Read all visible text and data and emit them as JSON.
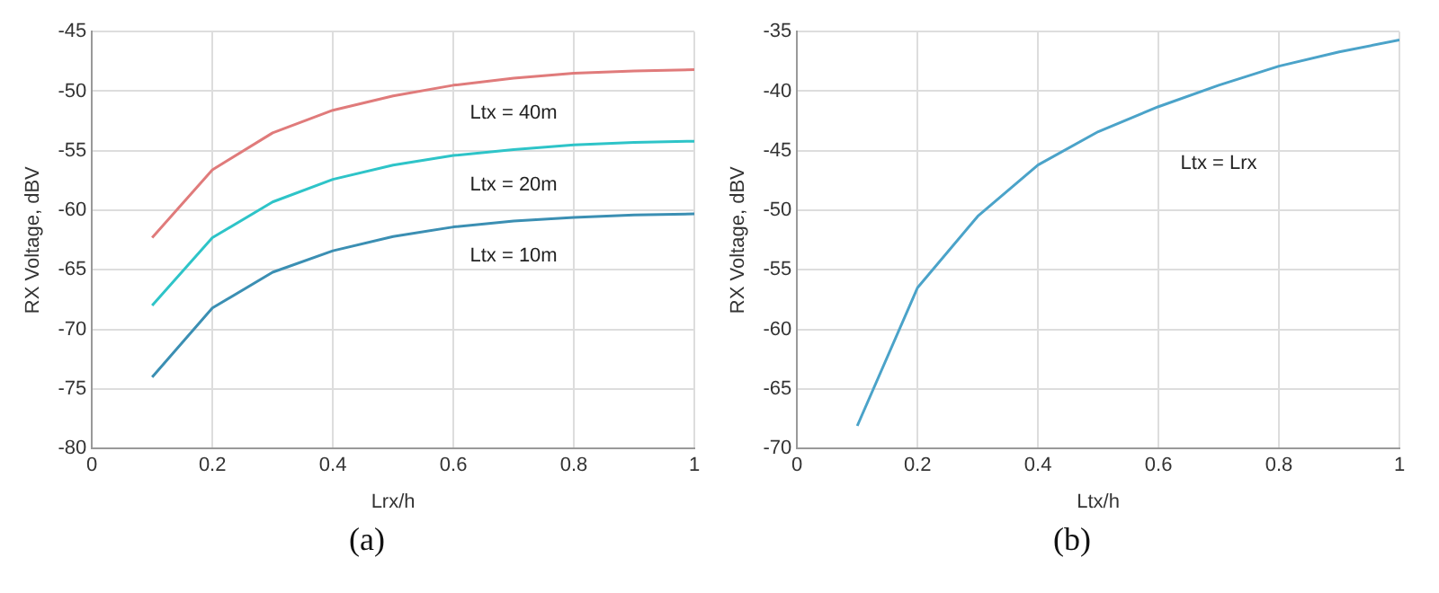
{
  "chart_data": [
    {
      "type": "line",
      "annotations": [
        "(a)"
      ],
      "xlabel": "Lrx/h",
      "ylabel": "RX Voltage, dBV",
      "x": [
        0.1,
        0.2,
        0.3,
        0.4,
        0.5,
        0.6,
        0.7,
        0.8,
        0.9,
        1.0
      ],
      "series": [
        {
          "name": "Ltx = 40m",
          "color": "#e07b7b",
          "values": [
            -62.3,
            -56.6,
            -53.5,
            -51.6,
            -50.4,
            -49.5,
            -48.9,
            -48.5,
            -48.3,
            -48.2
          ]
        },
        {
          "name": "Ltx = 20m",
          "color": "#2ec4c8",
          "values": [
            -68.0,
            -62.3,
            -59.3,
            -57.4,
            -56.2,
            -55.4,
            -54.9,
            -54.5,
            -54.3,
            -54.2
          ]
        },
        {
          "name": "Ltx = 10m",
          "color": "#3b8fb3",
          "values": [
            -74.0,
            -68.2,
            -65.2,
            -63.4,
            -62.2,
            -61.4,
            -60.9,
            -60.6,
            -60.4,
            -60.3
          ]
        }
      ],
      "xlim": [
        0,
        1
      ],
      "xticks": [
        0,
        0.2,
        0.4,
        0.6,
        0.8,
        1
      ],
      "ylim": [
        -80,
        -45
      ],
      "yticks": [
        -80,
        -75,
        -70,
        -65,
        -60,
        -55,
        -50,
        -45
      ],
      "grid": true,
      "legend": false,
      "marker": "none",
      "line_style": "solid"
    },
    {
      "type": "line",
      "annotations": [
        "(b)"
      ],
      "xlabel": "Ltx/h",
      "ylabel": "RX Voltage, dBV",
      "x": [
        0.1,
        0.2,
        0.3,
        0.4,
        0.5,
        0.6,
        0.7,
        0.8,
        0.9,
        1.0
      ],
      "series": [
        {
          "name": "Ltx = Lrx",
          "color": "#4ba3c9",
          "values": [
            -68.1,
            -56.5,
            -50.5,
            -46.2,
            -43.4,
            -41.3,
            -39.5,
            -37.9,
            -36.7,
            -35.7
          ]
        }
      ],
      "xlim": [
        0,
        1
      ],
      "xticks": [
        0,
        0.2,
        0.4,
        0.6,
        0.8,
        1
      ],
      "ylim": [
        -70,
        -35
      ],
      "yticks": [
        -70,
        -65,
        -60,
        -55,
        -50,
        -45,
        -40,
        -35
      ],
      "grid": true,
      "legend": false,
      "marker": "none",
      "line_style": "solid"
    }
  ]
}
